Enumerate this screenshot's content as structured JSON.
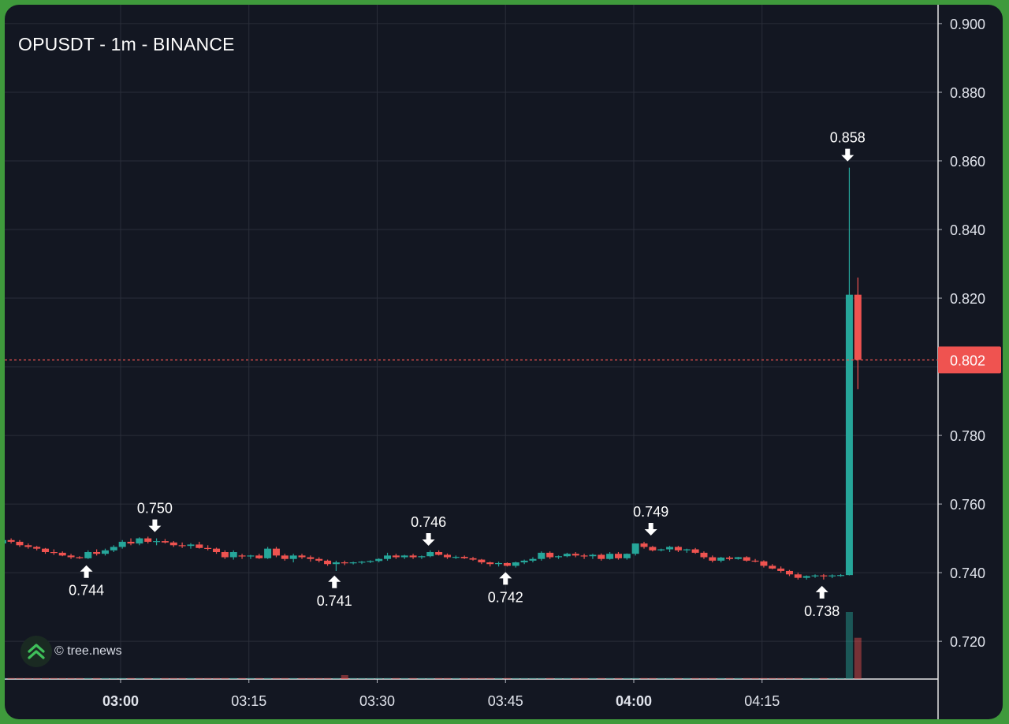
{
  "header": {
    "title": "OPUSDT - 1m - BINANCE"
  },
  "watermark": {
    "text": "© tree.news",
    "icon": "tree-news-logo-icon"
  },
  "colors": {
    "background": "#131722",
    "grid": "#2a2e39",
    "up": "#26a69a",
    "down": "#ef5350",
    "text": "#ffffff",
    "axis_text": "#e0e3eb",
    "price_line": "#ef5350"
  },
  "chart_data": {
    "type": "candlestick",
    "symbol": "OPUSDT",
    "interval": "1m",
    "exchange": "BINANCE",
    "ylim": [
      0.709,
      0.9055
    ],
    "y_ticks": [
      "0.720",
      "0.740",
      "0.760",
      "0.780",
      "0.800",
      "0.820",
      "0.840",
      "0.860",
      "0.880",
      "0.900"
    ],
    "x_ticks": [
      {
        "label": "03:00",
        "minute": 180,
        "bold": true
      },
      {
        "label": "03:15",
        "minute": 195,
        "bold": false
      },
      {
        "label": "03:30",
        "minute": 210,
        "bold": false
      },
      {
        "label": "03:45",
        "minute": 225,
        "bold": false
      },
      {
        "label": "04:00",
        "minute": 240,
        "bold": true
      },
      {
        "label": "04:15",
        "minute": 255,
        "bold": false
      }
    ],
    "x_range_minutes": [
      166.2,
      200.0,
      289.9
    ],
    "current_price": "0.802",
    "annotations": [
      {
        "label": "0.744",
        "minute": 176,
        "price": 0.744,
        "direction": "up"
      },
      {
        "label": "0.750",
        "minute": 184,
        "price": 0.75,
        "direction": "down"
      },
      {
        "label": "0.741",
        "minute": 205,
        "price": 0.741,
        "direction": "up"
      },
      {
        "label": "0.746",
        "minute": 216,
        "price": 0.746,
        "direction": "down"
      },
      {
        "label": "0.742",
        "minute": 225,
        "price": 0.742,
        "direction": "up"
      },
      {
        "label": "0.749",
        "minute": 242,
        "price": 0.749,
        "direction": "down"
      },
      {
        "label": "0.738",
        "minute": 262,
        "price": 0.738,
        "direction": "up"
      },
      {
        "label": "0.858",
        "minute": 265,
        "price": 0.858,
        "direction": "down"
      }
    ],
    "candles": [
      [
        0.7485,
        0.75,
        0.748,
        0.7495
      ],
      [
        0.7495,
        0.75,
        0.7485,
        0.749
      ],
      [
        0.749,
        0.7495,
        0.7475,
        0.748
      ],
      [
        0.748,
        0.7485,
        0.747,
        0.7475
      ],
      [
        0.7475,
        0.7478,
        0.7465,
        0.747
      ],
      [
        0.747,
        0.7472,
        0.7455,
        0.746
      ],
      [
        0.746,
        0.7468,
        0.7452,
        0.7458
      ],
      [
        0.7458,
        0.7462,
        0.7448,
        0.745
      ],
      [
        0.745,
        0.7455,
        0.744,
        0.7445
      ],
      [
        0.7445,
        0.7448,
        0.744,
        0.7442
      ],
      [
        0.7442,
        0.7465,
        0.744,
        0.746
      ],
      [
        0.746,
        0.7468,
        0.745,
        0.7455
      ],
      [
        0.7455,
        0.747,
        0.745,
        0.7465
      ],
      [
        0.7465,
        0.748,
        0.746,
        0.7475
      ],
      [
        0.7475,
        0.7495,
        0.747,
        0.749
      ],
      [
        0.749,
        0.75,
        0.748,
        0.7485
      ],
      [
        0.7485,
        0.7503,
        0.748,
        0.75
      ],
      [
        0.75,
        0.7505,
        0.7485,
        0.749
      ],
      [
        0.749,
        0.75,
        0.748,
        0.7492
      ],
      [
        0.7492,
        0.7498,
        0.7485,
        0.7488
      ],
      [
        0.7488,
        0.7492,
        0.7475,
        0.748
      ],
      [
        0.748,
        0.7488,
        0.7472,
        0.7478
      ],
      [
        0.7478,
        0.7486,
        0.747,
        0.7482
      ],
      [
        0.7482,
        0.749,
        0.747,
        0.7472
      ],
      [
        0.7472,
        0.748,
        0.7465,
        0.747
      ],
      [
        0.747,
        0.7473,
        0.7455,
        0.746
      ],
      [
        0.746,
        0.7465,
        0.744,
        0.7445
      ],
      [
        0.7445,
        0.7465,
        0.7438,
        0.746
      ],
      [
        0.745,
        0.7455,
        0.744,
        0.7448
      ],
      [
        0.7448,
        0.7452,
        0.744,
        0.745
      ],
      [
        0.745,
        0.7455,
        0.744,
        0.7442
      ],
      [
        0.7442,
        0.7475,
        0.744,
        0.747
      ],
      [
        0.747,
        0.7475,
        0.7445,
        0.745
      ],
      [
        0.745,
        0.7455,
        0.7435,
        0.744
      ],
      [
        0.744,
        0.7455,
        0.743,
        0.745
      ],
      [
        0.745,
        0.7455,
        0.744,
        0.7445
      ],
      [
        0.7445,
        0.745,
        0.7432,
        0.744
      ],
      [
        0.744,
        0.7445,
        0.743,
        0.7435
      ],
      [
        0.7435,
        0.7438,
        0.742,
        0.7425
      ],
      [
        0.7425,
        0.7435,
        0.7405,
        0.743
      ],
      [
        0.743,
        0.7435,
        0.7422,
        0.7428
      ],
      [
        0.7428,
        0.7432,
        0.7424,
        0.743
      ],
      [
        0.743,
        0.7434,
        0.7425,
        0.7432
      ],
      [
        0.7432,
        0.7436,
        0.7428,
        0.7434
      ],
      [
        0.7434,
        0.7442,
        0.743,
        0.744
      ],
      [
        0.744,
        0.7458,
        0.7435,
        0.745
      ],
      [
        0.745,
        0.7455,
        0.744,
        0.7445
      ],
      [
        0.7445,
        0.7452,
        0.744,
        0.745
      ],
      [
        0.745,
        0.7455,
        0.744,
        0.7445
      ],
      [
        0.7445,
        0.745,
        0.744,
        0.7448
      ],
      [
        0.7448,
        0.7465,
        0.7445,
        0.746
      ],
      [
        0.746,
        0.7465,
        0.745,
        0.7452
      ],
      [
        0.7452,
        0.7456,
        0.744,
        0.7445
      ],
      [
        0.7445,
        0.745,
        0.744,
        0.7446
      ],
      [
        0.7446,
        0.745,
        0.744,
        0.7442
      ],
      [
        0.7442,
        0.7446,
        0.7435,
        0.7438
      ],
      [
        0.7438,
        0.744,
        0.7425,
        0.743
      ],
      [
        0.743,
        0.7432,
        0.7418,
        0.7425
      ],
      [
        0.7425,
        0.7432,
        0.7418,
        0.7428
      ],
      [
        0.7428,
        0.743,
        0.7418,
        0.742
      ],
      [
        0.742,
        0.7432,
        0.7415,
        0.743
      ],
      [
        0.743,
        0.7438,
        0.7425,
        0.7435
      ],
      [
        0.7435,
        0.7445,
        0.743,
        0.744
      ],
      [
        0.744,
        0.7462,
        0.7435,
        0.7458
      ],
      [
        0.7458,
        0.7462,
        0.744,
        0.7445
      ],
      [
        0.7445,
        0.745,
        0.744,
        0.7448
      ],
      [
        0.7448,
        0.7458,
        0.7445,
        0.7455
      ],
      [
        0.7455,
        0.746,
        0.7445,
        0.745
      ],
      [
        0.745,
        0.7455,
        0.744,
        0.7448
      ],
      [
        0.7448,
        0.7455,
        0.744,
        0.7452
      ],
      [
        0.7452,
        0.7456,
        0.7435,
        0.744
      ],
      [
        0.744,
        0.746,
        0.7438,
        0.7455
      ],
      [
        0.7455,
        0.746,
        0.7438,
        0.7442
      ],
      [
        0.7442,
        0.7456,
        0.7438,
        0.7455
      ],
      [
        0.7455,
        0.7485,
        0.745,
        0.7485
      ],
      [
        0.7485,
        0.749,
        0.747,
        0.7475
      ],
      [
        0.7475,
        0.7478,
        0.7462,
        0.7465
      ],
      [
        0.7465,
        0.747,
        0.7462,
        0.7468
      ],
      [
        0.7468,
        0.7478,
        0.746,
        0.7475
      ],
      [
        0.7475,
        0.7478,
        0.746,
        0.7465
      ],
      [
        0.7465,
        0.747,
        0.7458,
        0.7468
      ],
      [
        0.7468,
        0.7472,
        0.7455,
        0.7458
      ],
      [
        0.7458,
        0.7462,
        0.744,
        0.7445
      ],
      [
        0.7445,
        0.745,
        0.743,
        0.7435
      ],
      [
        0.7435,
        0.7446,
        0.743,
        0.7444
      ],
      [
        0.7444,
        0.7448,
        0.7436,
        0.744
      ],
      [
        0.744,
        0.7446,
        0.7438,
        0.7445
      ],
      [
        0.7445,
        0.7448,
        0.7432,
        0.7435
      ],
      [
        0.7435,
        0.744,
        0.743,
        0.7433
      ],
      [
        0.7433,
        0.7436,
        0.7415,
        0.742
      ],
      [
        0.742,
        0.7425,
        0.741,
        0.7412
      ],
      [
        0.7412,
        0.7418,
        0.74,
        0.7405
      ],
      [
        0.7405,
        0.7408,
        0.739,
        0.7395
      ],
      [
        0.7395,
        0.74,
        0.738,
        0.7385
      ],
      [
        0.7385,
        0.7392,
        0.738,
        0.739
      ],
      [
        0.739,
        0.7395,
        0.7385,
        0.7392
      ],
      [
        0.7392,
        0.7396,
        0.738,
        0.739
      ],
      [
        0.739,
        0.7395,
        0.7384,
        0.7392
      ],
      [
        0.7392,
        0.7396,
        0.7388,
        0.7393
      ],
      [
        0.7393,
        0.858,
        0.7392,
        0.821
      ],
      [
        0.821,
        0.826,
        0.7935,
        0.802
      ]
    ],
    "volumes": [
      2,
      2,
      2,
      2,
      2,
      2,
      2,
      2,
      2,
      2,
      2,
      2,
      2,
      2,
      2,
      2,
      2,
      2,
      2,
      2,
      2,
      2,
      2,
      2,
      2,
      2,
      2,
      2,
      2,
      2,
      2,
      2,
      2,
      2,
      2,
      2,
      2,
      2,
      2,
      2,
      2,
      2,
      2,
      2,
      2,
      2,
      2,
      2,
      2,
      2,
      2,
      2,
      2,
      2,
      2,
      2,
      2,
      2,
      2,
      2,
      2,
      2,
      2,
      2,
      2,
      2,
      2,
      2,
      2,
      2,
      2,
      2,
      2,
      2,
      2,
      2,
      2,
      2,
      2,
      2,
      2,
      2,
      2,
      2,
      2,
      2,
      2,
      2,
      2,
      2,
      2,
      2,
      2,
      2,
      2,
      2,
      2,
      2,
      2,
      130,
      80
    ],
    "volume_spikes": [
      {
        "index": 40,
        "value": 5
      }
    ]
  }
}
